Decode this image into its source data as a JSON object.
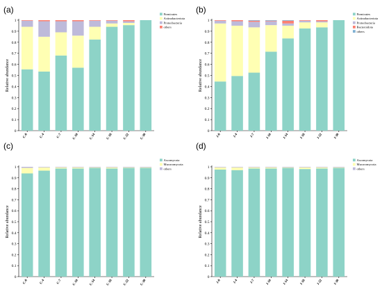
{
  "chart_data": [
    {
      "type": "bar",
      "stacked": true,
      "panel_label": "(a)",
      "ylabel": "Relative abundance",
      "ylim": [
        0,
        1
      ],
      "yticks": [
        "0",
        "0.1",
        "0.2",
        "0.3",
        "0.4",
        "0.5",
        "0.6",
        "0.7",
        "0.8",
        "0.9",
        "1"
      ],
      "categories": [
        "C-0",
        "C-4",
        "C-7",
        "C-10",
        "C-14",
        "C-18",
        "C-22",
        "C-30"
      ],
      "legend_position": "top-right",
      "series": [
        {
          "name": "Firmicutes",
          "color": "#8dd3c7",
          "values": [
            0.555,
            0.535,
            0.68,
            0.57,
            0.825,
            0.94,
            0.955,
            1.0
          ]
        },
        {
          "name": "Actinobacteriota",
          "color": "#ffffb3",
          "values": [
            0.385,
            0.315,
            0.21,
            0.29,
            0.115,
            0.03,
            0.02,
            0.0
          ]
        },
        {
          "name": "Proteobacteria",
          "color": "#bebada",
          "values": [
            0.055,
            0.14,
            0.1,
            0.13,
            0.055,
            0.025,
            0.015,
            0.0
          ]
        },
        {
          "name": "others",
          "color": "#fb8072",
          "values": [
            0.005,
            0.01,
            0.01,
            0.01,
            0.005,
            0.005,
            0.01,
            0.0
          ]
        }
      ]
    },
    {
      "type": "bar",
      "stacked": true,
      "panel_label": "(b)",
      "ylabel": "Relative abundance",
      "ylim": [
        0,
        1
      ],
      "yticks": [
        "0",
        "0.1",
        "0.2",
        "0.3",
        "0.4",
        "0.5",
        "0.6",
        "0.7",
        "0.8",
        "0.9",
        "1"
      ],
      "categories": [
        "J-0",
        "J-4",
        "J-7",
        "J-10",
        "J-14",
        "J-18",
        "J-22",
        "J-30"
      ],
      "legend_position": "top-right",
      "series": [
        {
          "name": "Firmicutes",
          "color": "#8dd3c7",
          "values": [
            0.445,
            0.495,
            0.525,
            0.715,
            0.835,
            0.925,
            0.935,
            1.0
          ]
        },
        {
          "name": "Actinobacteriota",
          "color": "#ffffb3",
          "values": [
            0.525,
            0.455,
            0.41,
            0.24,
            0.115,
            0.055,
            0.045,
            0.0
          ]
        },
        {
          "name": "Proteobacteria",
          "color": "#bebada",
          "values": [
            0.025,
            0.04,
            0.05,
            0.035,
            0.02,
            0.015,
            0.01,
            0.0
          ]
        },
        {
          "name": "Bacteroidota",
          "color": "#fb8072",
          "values": [
            0.005,
            0.01,
            0.01,
            0.005,
            0.025,
            0.005,
            0.01,
            0.0
          ]
        },
        {
          "name": "others",
          "color": "#80b1d3",
          "values": [
            0.0,
            0.0,
            0.005,
            0.005,
            0.005,
            0.0,
            0.0,
            0.0
          ]
        }
      ]
    },
    {
      "type": "bar",
      "stacked": true,
      "panel_label": "(c)",
      "ylabel": "Relative abundance",
      "ylim": [
        0,
        1
      ],
      "yticks": [
        "0",
        "0.1",
        "0.2",
        "0.3",
        "0.4",
        "0.5",
        "0.6",
        "0.7",
        "0.8",
        "0.9",
        "1"
      ],
      "categories": [
        "C-0",
        "C-4",
        "C-7",
        "C-10",
        "C-14",
        "C-18",
        "C-22",
        "C-30"
      ],
      "legend_position": "top-right",
      "series": [
        {
          "name": "Ascomycota",
          "color": "#8dd3c7",
          "values": [
            0.94,
            0.965,
            0.985,
            0.985,
            0.99,
            0.985,
            0.99,
            0.99
          ]
        },
        {
          "name": "Mucoromycota",
          "color": "#ffffb3",
          "values": [
            0.05,
            0.03,
            0.01,
            0.01,
            0.005,
            0.01,
            0.005,
            0.005
          ]
        },
        {
          "name": "others",
          "color": "#bebada",
          "values": [
            0.01,
            0.005,
            0.005,
            0.005,
            0.005,
            0.005,
            0.005,
            0.005
          ]
        }
      ]
    },
    {
      "type": "bar",
      "stacked": true,
      "panel_label": "(d)",
      "ylabel": "Relative abundance",
      "ylim": [
        0,
        1
      ],
      "yticks": [
        "0",
        "0.1",
        "0.2",
        "0.3",
        "0.4",
        "0.5",
        "0.6",
        "0.7",
        "0.8",
        "0.9",
        "1"
      ],
      "categories": [
        "J-0",
        "J-4",
        "J-7",
        "J-10",
        "J-14",
        "J-18",
        "J-22",
        "J-30"
      ],
      "legend_position": "top-right",
      "series": [
        {
          "name": "Ascomycota",
          "color": "#8dd3c7",
          "values": [
            0.975,
            0.97,
            0.985,
            0.985,
            0.99,
            0.98,
            0.985,
            0.99
          ]
        },
        {
          "name": "Mucoromycota",
          "color": "#ffffb3",
          "values": [
            0.02,
            0.025,
            0.01,
            0.01,
            0.005,
            0.015,
            0.01,
            0.005
          ]
        },
        {
          "name": "others",
          "color": "#bebada",
          "values": [
            0.005,
            0.005,
            0.005,
            0.005,
            0.005,
            0.005,
            0.005,
            0.005
          ]
        }
      ]
    }
  ]
}
